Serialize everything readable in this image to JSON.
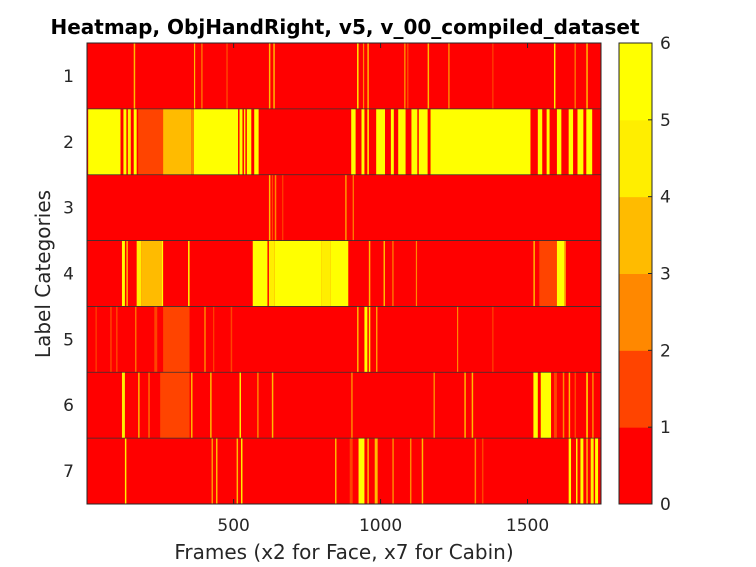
{
  "chart_data": {
    "type": "heatmap",
    "title": "Heatmap, ObjHandRight, v5, v_00_compiled_dataset",
    "xlabel": "Frames (x2 for Face, x7 for Cabin)",
    "ylabel": "Label Categories",
    "xlim": [
      1,
      1750
    ],
    "x_ticks": [
      500,
      1000,
      1500
    ],
    "y_categories": [
      "1",
      "2",
      "3",
      "4",
      "5",
      "6",
      "7"
    ],
    "colorbar": {
      "range": [
        0,
        6
      ],
      "ticks": [
        0,
        1,
        2,
        3,
        4,
        5,
        6
      ],
      "colors": [
        "#ff0000",
        "#ff4400",
        "#ff8800",
        "#ffbb00",
        "#ffee00",
        "#ffff00"
      ]
    },
    "rows": [
      {
        "label": "1",
        "base": 0,
        "segments": [
          [
            160,
            165,
            4
          ],
          [
            365,
            368,
            3
          ],
          [
            390,
            393,
            2
          ],
          [
            475,
            480,
            1
          ],
          [
            620,
            625,
            4
          ],
          [
            635,
            640,
            3
          ],
          [
            920,
            925,
            5
          ],
          [
            940,
            943,
            2
          ],
          [
            955,
            960,
            3
          ],
          [
            1080,
            1085,
            2
          ],
          [
            1090,
            1095,
            1
          ],
          [
            1160,
            1165,
            3
          ],
          [
            1230,
            1235,
            2
          ],
          [
            1380,
            1383,
            1
          ],
          [
            1590,
            1595,
            5
          ],
          [
            1660,
            1663,
            2
          ],
          [
            1700,
            1705,
            4
          ]
        ]
      },
      {
        "label": "2",
        "base": 0,
        "segments": [
          [
            5,
            115,
            6
          ],
          [
            125,
            135,
            6
          ],
          [
            140,
            150,
            5
          ],
          [
            160,
            170,
            6
          ],
          [
            175,
            260,
            1
          ],
          [
            260,
            355,
            3
          ],
          [
            355,
            365,
            2
          ],
          [
            365,
            515,
            6
          ],
          [
            520,
            530,
            6
          ],
          [
            535,
            540,
            5
          ],
          [
            545,
            560,
            6
          ],
          [
            570,
            585,
            6
          ],
          [
            900,
            915,
            6
          ],
          [
            935,
            945,
            6
          ],
          [
            955,
            960,
            6
          ],
          [
            985,
            1015,
            6
          ],
          [
            1035,
            1045,
            6
          ],
          [
            1060,
            1085,
            6
          ],
          [
            1105,
            1125,
            6
          ],
          [
            1130,
            1160,
            6
          ],
          [
            1170,
            1510,
            6
          ],
          [
            1535,
            1550,
            6
          ],
          [
            1565,
            1575,
            6
          ],
          [
            1600,
            1615,
            6
          ],
          [
            1640,
            1655,
            6
          ],
          [
            1670,
            1690,
            6
          ],
          [
            1700,
            1720,
            6
          ]
        ]
      },
      {
        "label": "3",
        "base": 0,
        "segments": [
          [
            620,
            625,
            3
          ],
          [
            630,
            633,
            1
          ],
          [
            640,
            645,
            2
          ],
          [
            665,
            668,
            1
          ],
          [
            880,
            884,
            3
          ],
          [
            905,
            908,
            2
          ]
        ]
      },
      {
        "label": "4",
        "base": 0,
        "segments": [
          [
            120,
            130,
            6
          ],
          [
            135,
            140,
            3
          ],
          [
            170,
            185,
            5
          ],
          [
            185,
            255,
            4
          ],
          [
            255,
            260,
            6
          ],
          [
            345,
            350,
            6
          ],
          [
            565,
            615,
            6
          ],
          [
            620,
            640,
            5
          ],
          [
            640,
            800,
            6
          ],
          [
            800,
            830,
            5
          ],
          [
            830,
            890,
            6
          ],
          [
            960,
            965,
            3
          ],
          [
            1010,
            1015,
            4
          ],
          [
            1040,
            1043,
            2
          ],
          [
            1120,
            1123,
            2
          ],
          [
            1520,
            1525,
            3
          ],
          [
            1540,
            1600,
            1
          ],
          [
            1600,
            1625,
            6
          ],
          [
            1625,
            1630,
            4
          ]
        ]
      },
      {
        "label": "5",
        "base": 0,
        "segments": [
          [
            30,
            33,
            1
          ],
          [
            80,
            85,
            1
          ],
          [
            100,
            105,
            1
          ],
          [
            165,
            168,
            2
          ],
          [
            230,
            240,
            1
          ],
          [
            260,
            350,
            1
          ],
          [
            400,
            405,
            2
          ],
          [
            430,
            433,
            1
          ],
          [
            490,
            495,
            1
          ],
          [
            920,
            925,
            4
          ],
          [
            945,
            955,
            6
          ],
          [
            960,
            965,
            5
          ],
          [
            985,
            988,
            3
          ],
          [
            1260,
            1263,
            2
          ],
          [
            1380,
            1383,
            1
          ]
        ]
      },
      {
        "label": "6",
        "base": 0,
        "segments": [
          [
            120,
            130,
            5
          ],
          [
            175,
            180,
            4
          ],
          [
            210,
            213,
            2
          ],
          [
            250,
            350,
            1
          ],
          [
            355,
            360,
            4
          ],
          [
            420,
            425,
            3
          ],
          [
            520,
            525,
            5
          ],
          [
            580,
            585,
            2
          ],
          [
            630,
            635,
            3
          ],
          [
            900,
            905,
            2
          ],
          [
            1180,
            1185,
            2
          ],
          [
            1285,
            1290,
            3
          ],
          [
            1310,
            1315,
            4
          ],
          [
            1520,
            1535,
            6
          ],
          [
            1545,
            1580,
            6
          ],
          [
            1590,
            1600,
            1
          ],
          [
            1620,
            1625,
            2
          ],
          [
            1640,
            1645,
            3
          ],
          [
            1660,
            1665,
            1
          ],
          [
            1700,
            1705,
            5
          ],
          [
            1720,
            1725,
            2
          ]
        ]
      },
      {
        "label": "7",
        "base": 0,
        "segments": [
          [
            130,
            135,
            5
          ],
          [
            425,
            428,
            4
          ],
          [
            440,
            445,
            3
          ],
          [
            510,
            515,
            4
          ],
          [
            525,
            530,
            5
          ],
          [
            845,
            850,
            4
          ],
          [
            895,
            905,
            1
          ],
          [
            925,
            945,
            6
          ],
          [
            955,
            960,
            4
          ],
          [
            980,
            990,
            3
          ],
          [
            1040,
            1045,
            2
          ],
          [
            1100,
            1105,
            2
          ],
          [
            1140,
            1145,
            3
          ],
          [
            1320,
            1325,
            2
          ],
          [
            1345,
            1350,
            1
          ],
          [
            1640,
            1648,
            6
          ],
          [
            1665,
            1670,
            5
          ],
          [
            1680,
            1690,
            6
          ],
          [
            1700,
            1705,
            4
          ],
          [
            1715,
            1725,
            5
          ],
          [
            1730,
            1740,
            6
          ]
        ]
      }
    ]
  }
}
